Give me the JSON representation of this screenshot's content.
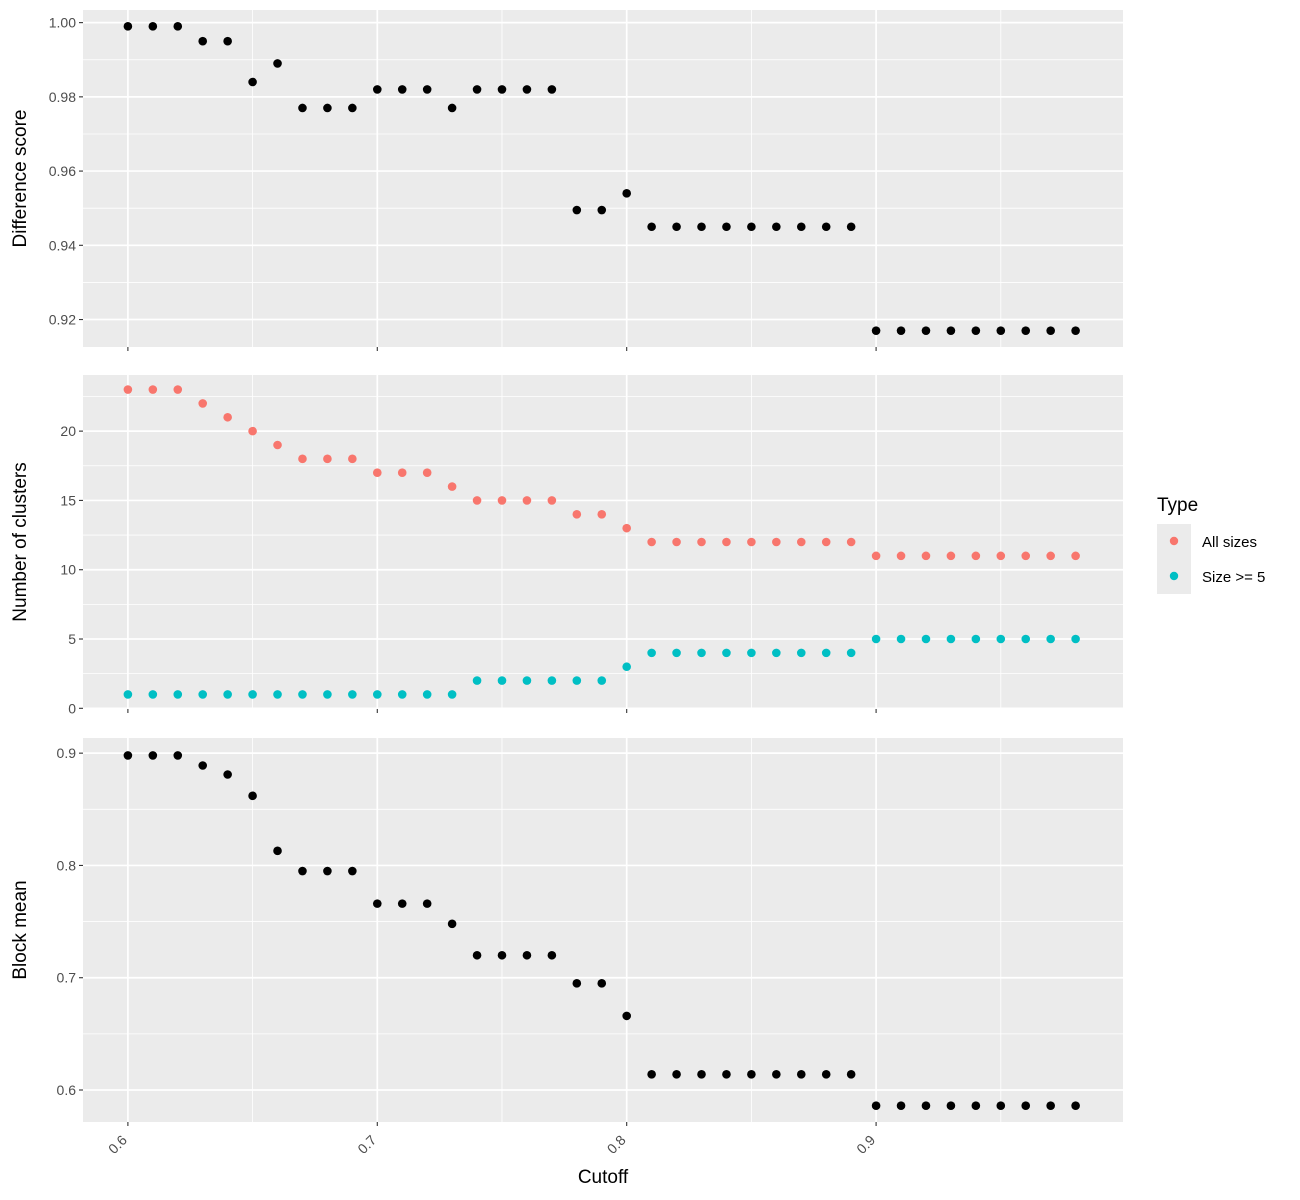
{
  "chart_data": {
    "type": "scatter",
    "x_axis": {
      "label": "Cutoff",
      "range": [
        0.582,
        0.999
      ],
      "ticks": [
        0.6,
        0.7,
        0.8,
        0.9
      ],
      "tick_labels": [
        "0.6",
        "0.7",
        "0.8",
        "0.9"
      ]
    },
    "x": [
      0.6,
      0.61,
      0.62,
      0.63,
      0.64,
      0.65,
      0.66,
      0.67,
      0.68,
      0.69,
      0.7,
      0.71,
      0.72,
      0.73,
      0.74,
      0.75,
      0.76,
      0.77,
      0.78,
      0.79,
      0.8,
      0.81,
      0.82,
      0.83,
      0.84,
      0.85,
      0.86,
      0.87,
      0.88,
      0.89,
      0.9,
      0.91,
      0.92,
      0.93,
      0.94,
      0.95,
      0.96,
      0.97,
      0.98
    ],
    "grid": true,
    "legend": {
      "title": "Type",
      "placement": "right",
      "entries": [
        {
          "label": "All sizes",
          "color": "#F8766D"
        },
        {
          "label": "Size >= 5",
          "color": "#00BFC4"
        }
      ]
    },
    "panels": [
      {
        "ylabel": "Difference score",
        "ylim": [
          0.9126,
          1.0034
        ],
        "yticks": [
          0.92,
          0.94,
          0.96,
          0.98,
          1.0
        ],
        "ytick_labels": [
          "0.92",
          "0.94",
          "0.96",
          "0.98",
          "1.00"
        ],
        "series": [
          {
            "color": "#000000",
            "values": [
              0.999,
              0.999,
              0.999,
              0.995,
              0.995,
              0.984,
              0.989,
              0.977,
              0.977,
              0.977,
              0.982,
              0.982,
              0.982,
              0.977,
              0.982,
              0.982,
              0.982,
              0.982,
              0.9495,
              0.9495,
              0.954,
              0.945,
              0.945,
              0.945,
              0.945,
              0.945,
              0.945,
              0.945,
              0.945,
              0.945,
              0.917,
              0.917,
              0.917,
              0.917,
              0.917,
              0.917,
              0.917,
              0.917,
              0.917
            ]
          }
        ]
      },
      {
        "ylabel": "Number of clusters",
        "ylim": [
          -0.05,
          24.05
        ],
        "yticks": [
          0,
          5,
          10,
          15,
          20
        ],
        "ytick_labels": [
          "0",
          "5",
          "10",
          "15",
          "20"
        ],
        "series": [
          {
            "name": "All sizes",
            "color": "#F8766D",
            "values": [
              23,
              23,
              23,
              22,
              21,
              20,
              19,
              18,
              18,
              18,
              17,
              17,
              17,
              16,
              15,
              15,
              15,
              15,
              14,
              14,
              13,
              12,
              12,
              12,
              12,
              12,
              12,
              12,
              12,
              12,
              11,
              11,
              11,
              11,
              11,
              11,
              11,
              11,
              11
            ]
          },
          {
            "name": "Size >= 5",
            "color": "#00BFC4",
            "values": [
              1,
              1,
              1,
              1,
              1,
              1,
              1,
              1,
              1,
              1,
              1,
              1,
              1,
              1,
              2,
              2,
              2,
              2,
              2,
              2,
              3,
              4,
              4,
              4,
              4,
              4,
              4,
              4,
              4,
              4,
              5,
              5,
              5,
              5,
              5,
              5,
              5,
              5,
              5
            ]
          }
        ]
      },
      {
        "ylabel": "Block mean",
        "ylim": [
          0.5715,
          0.9135
        ],
        "yticks": [
          0.6,
          0.7,
          0.8,
          0.9
        ],
        "ytick_labels": [
          "0.6",
          "0.7",
          "0.8",
          "0.9"
        ],
        "series": [
          {
            "color": "#000000",
            "values": [
              0.898,
              0.898,
              0.898,
              0.889,
              0.881,
              0.862,
              0.813,
              0.795,
              0.795,
              0.795,
              0.766,
              0.766,
              0.766,
              0.748,
              0.72,
              0.72,
              0.72,
              0.72,
              0.695,
              0.695,
              0.666,
              0.614,
              0.614,
              0.614,
              0.614,
              0.614,
              0.614,
              0.614,
              0.614,
              0.614,
              0.586,
              0.586,
              0.586,
              0.586,
              0.586,
              0.586,
              0.586,
              0.586,
              0.586
            ]
          }
        ]
      }
    ]
  }
}
